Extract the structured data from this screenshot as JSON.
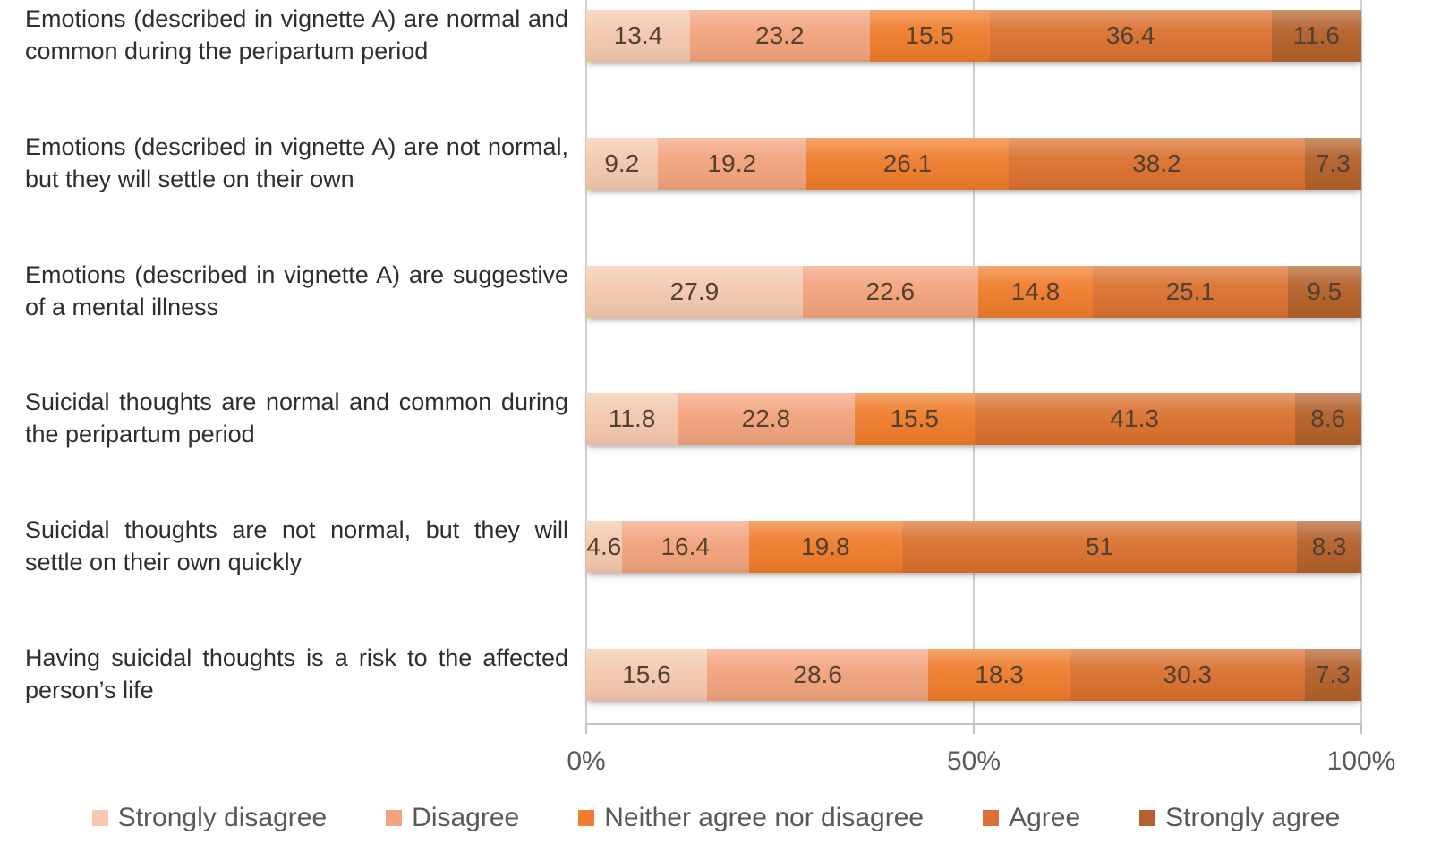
{
  "chart_data": {
    "type": "bar",
    "orientation": "horizontal",
    "stacked": "percent",
    "title": "",
    "xlabel": "",
    "ylabel": "",
    "xlim": [
      0,
      100
    ],
    "x_ticks": [
      {
        "label": "0%",
        "pct": 0
      },
      {
        "label": "50%",
        "pct": 50
      },
      {
        "label": "100%",
        "pct": 100
      }
    ],
    "grid": "vertical",
    "legend_position": "bottom",
    "categories": [
      "Emotions (described in vignette A) are normal and common during the peripartum period",
      "Emotions (described in vignette A) are not normal, but they will settle on their own",
      "Emotions (described in vignette A) are suggestive of a mental illness",
      "Suicidal thoughts are normal and common during the peripartum period",
      "Suicidal thoughts are not normal, but they will settle on their own quickly",
      "Having suicidal thoughts is a risk to the affected person’s life"
    ],
    "series": [
      {
        "name": "Strongly disagree",
        "color": "#f4c9af",
        "values": [
          13.4,
          9.2,
          27.9,
          11.8,
          4.6,
          15.6
        ]
      },
      {
        "name": "Disagree",
        "color": "#f2a47e",
        "values": [
          23.2,
          19.2,
          22.6,
          22.8,
          16.4,
          28.6
        ]
      },
      {
        "name": "Neither agree nor disagree",
        "color": "#ef7d2c",
        "values": [
          15.5,
          26.1,
          14.8,
          15.5,
          19.8,
          18.3
        ]
      },
      {
        "name": "Agree",
        "color": "#db7231",
        "values": [
          36.4,
          38.2,
          25.1,
          41.3,
          51,
          30.3
        ]
      },
      {
        "name": "Strongly agree",
        "color": "#b4612b",
        "values": [
          11.6,
          7.3,
          9.5,
          8.6,
          8.3,
          7.3
        ]
      }
    ]
  },
  "layout_colors": {
    "gridline": "#cfcfcf",
    "axis": "#c3c3c3",
    "tick_text": "#595959",
    "value_text": "#53402f",
    "category_text": "#2e2e2e"
  }
}
